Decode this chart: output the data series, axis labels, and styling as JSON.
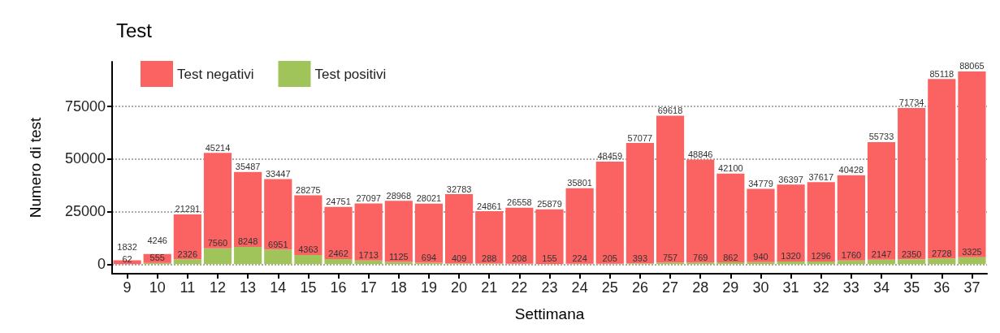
{
  "chart_data": {
    "type": "bar",
    "title": "Test",
    "xlabel": "Settimana",
    "ylabel": "Numero di test",
    "categories": [
      "9",
      "10",
      "11",
      "12",
      "13",
      "14",
      "15",
      "16",
      "17",
      "18",
      "19",
      "20",
      "21",
      "22",
      "23",
      "24",
      "25",
      "26",
      "27",
      "28",
      "29",
      "30",
      "31",
      "32",
      "33",
      "34",
      "35",
      "36",
      "37"
    ],
    "stacked": true,
    "data_labels": true,
    "legend": "top left",
    "grid": "y",
    "ylim": [
      -4500,
      96000
    ],
    "yticks": [
      0,
      25000,
      50000,
      75000
    ],
    "series": [
      {
        "name": "Test positivi",
        "color": "#a1c45a",
        "values": [
          62,
          555,
          2326,
          7560,
          8248,
          6951,
          4363,
          2462,
          1713,
          1125,
          694,
          409,
          288,
          208,
          155,
          224,
          205,
          393,
          757,
          769,
          862,
          940,
          1320,
          1296,
          1760,
          2147,
          2350,
          2728,
          3325
        ]
      },
      {
        "name": "Test negativi",
        "color": "#fb6262",
        "values": [
          1832,
          4246,
          21291,
          45214,
          35487,
          33447,
          28275,
          24751,
          27097,
          28968,
          28021,
          32783,
          24861,
          26558,
          25879,
          35801,
          48459,
          57077,
          69618,
          48846,
          42100,
          34779,
          36397,
          37617,
          40428,
          55733,
          71734,
          85118,
          88065
        ]
      }
    ]
  }
}
